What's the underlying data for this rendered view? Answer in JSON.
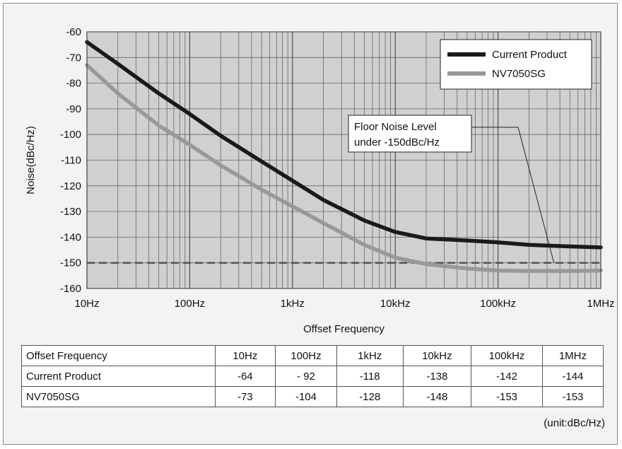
{
  "chart_data": {
    "type": "line",
    "xlabel": "Offset Frequency",
    "ylabel": "Noise(dBc/Hz)",
    "xscale": "log",
    "xlim": [
      10,
      1000000
    ],
    "ylim": [
      -160,
      -60
    ],
    "xticks": [
      10,
      100,
      1000,
      10000,
      100000,
      1000000
    ],
    "xtick_labels": [
      "10Hz",
      "100Hz",
      "1kHz",
      "10kHz",
      "100kHz",
      "1MHz"
    ],
    "yticks": [
      -60,
      -70,
      -80,
      -90,
      -100,
      -110,
      -120,
      -130,
      -140,
      -150,
      -160
    ],
    "grid": true,
    "legend_position": "top-right",
    "series": [
      {
        "name": "Current Product",
        "color": "#1a1a1a",
        "x": [
          10,
          20,
          50,
          100,
          200,
          500,
          1000,
          2000,
          5000,
          10000,
          20000,
          50000,
          100000,
          200000,
          500000,
          1000000
        ],
        "y": [
          -64,
          -72.5,
          -84,
          -92,
          -100.5,
          -110.5,
          -118,
          -125.5,
          -133.5,
          -138,
          -140.5,
          -141.3,
          -142,
          -143,
          -143.6,
          -144
        ]
      },
      {
        "name": "NV7050SG",
        "color": "#999999",
        "x": [
          10,
          20,
          50,
          100,
          200,
          500,
          1000,
          2000,
          5000,
          10000,
          20000,
          50000,
          100000,
          200000,
          500000,
          1000000
        ],
        "y": [
          -73,
          -84,
          -96.5,
          -104,
          -112,
          -121.5,
          -128,
          -134.5,
          -143,
          -148,
          -150.5,
          -152.2,
          -153,
          -153.2,
          -153.2,
          -153
        ]
      }
    ],
    "reference_line": {
      "y": -150,
      "color": "#555555",
      "style": "dashed"
    },
    "annotation": {
      "lines": [
        "Floor Noise Level",
        "under -150dBc/Hz"
      ],
      "points_to": {
        "x": 350000,
        "y": -150
      }
    },
    "plot_background": "#d0d0d0"
  },
  "table": {
    "header": [
      "Offset Frequency",
      "10Hz",
      "100Hz",
      "1kHz",
      "10kHz",
      "100kHz",
      "1MHz"
    ],
    "rows": [
      [
        "Current Product",
        "-64",
        "- 92",
        "-118",
        "-138",
        "-142",
        "-144"
      ],
      [
        "NV7050SG",
        "-73",
        "-104",
        "-128",
        "-148",
        "-153",
        "-153"
      ]
    ]
  },
  "unit_note": "(unit:dBc/Hz)"
}
